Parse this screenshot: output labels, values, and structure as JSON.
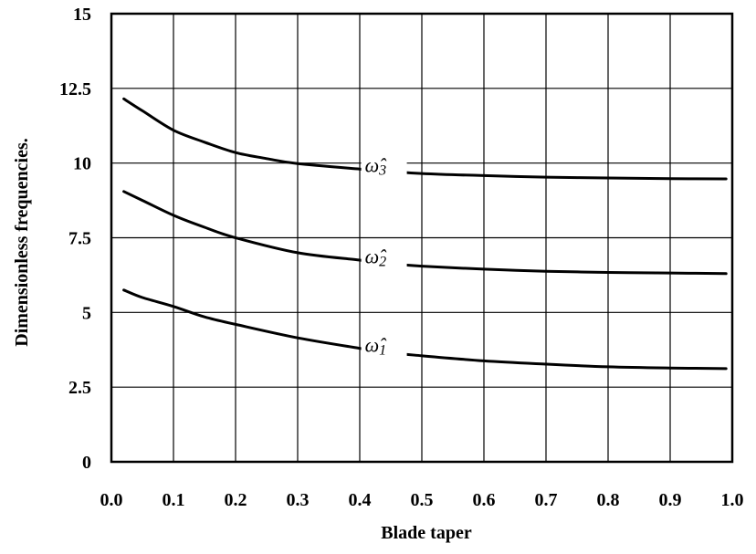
{
  "chart_data": {
    "type": "line",
    "xlabel": "Blade taper",
    "ylabel": "Dimensionless frequencies.",
    "xlim": [
      0,
      1.0
    ],
    "ylim": [
      0,
      15
    ],
    "x_ticks": [
      "0.0",
      "0.1",
      "0.2",
      "0.3",
      "0.4",
      "0.5",
      "0.6",
      "0.7",
      "0.8",
      "0.9",
      "1.0"
    ],
    "y_ticks": [
      "0",
      "2.5",
      "5",
      "7.5",
      "10",
      "12.5",
      "15"
    ],
    "grid": true,
    "line_color": "#000000",
    "series": [
      {
        "name": "ω̂1",
        "label_base": "ω̂",
        "label_sub": "1",
        "x": [
          0.02,
          0.05,
          0.1,
          0.15,
          0.2,
          0.3,
          0.4,
          0.45,
          0.5,
          0.6,
          0.7,
          0.8,
          0.9,
          0.99
        ],
        "y": [
          5.75,
          5.5,
          5.2,
          4.85,
          4.6,
          4.15,
          3.8,
          3.65,
          3.55,
          3.38,
          3.27,
          3.18,
          3.14,
          3.12
        ]
      },
      {
        "name": "ω̂2",
        "label_base": "ω̂",
        "label_sub": "2",
        "x": [
          0.02,
          0.05,
          0.1,
          0.15,
          0.2,
          0.3,
          0.4,
          0.45,
          0.5,
          0.6,
          0.7,
          0.8,
          0.9,
          0.99
        ],
        "y": [
          9.05,
          8.75,
          8.25,
          7.85,
          7.5,
          7.0,
          6.75,
          6.63,
          6.55,
          6.45,
          6.38,
          6.34,
          6.32,
          6.3
        ]
      },
      {
        "name": "ω̂3",
        "label_base": "ω̂",
        "label_sub": "3",
        "x": [
          0.02,
          0.05,
          0.1,
          0.15,
          0.2,
          0.25,
          0.3,
          0.4,
          0.45,
          0.5,
          0.6,
          0.7,
          0.8,
          0.9,
          0.99
        ],
        "y": [
          12.15,
          11.75,
          11.1,
          10.7,
          10.35,
          10.15,
          9.98,
          9.8,
          9.72,
          9.65,
          9.58,
          9.53,
          9.5,
          9.48,
          9.47
        ]
      }
    ]
  }
}
